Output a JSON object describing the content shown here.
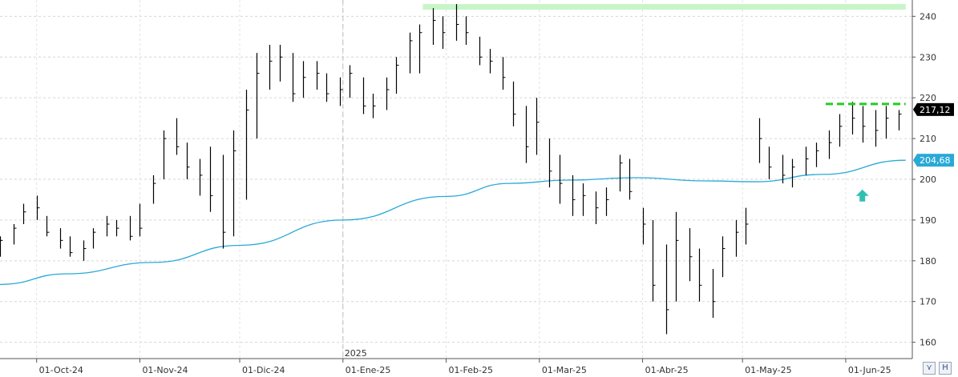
{
  "chart_data": {
    "type": "ohlc",
    "title": "",
    "xlabel": "",
    "ylabel": "",
    "ylim": [
      156,
      244
    ],
    "y_ticks": [
      160,
      170,
      180,
      190,
      200,
      210,
      220,
      230,
      240
    ],
    "x_range": [
      "2024-09-20",
      "2025-06-21"
    ],
    "x_ticks": [
      {
        "date": "2024-10-01",
        "label": "01-Oct-24"
      },
      {
        "date": "2024-11-01",
        "label": "01-Nov-24"
      },
      {
        "date": "2024-12-01",
        "label": "01-Dic-24"
      },
      {
        "date": "2025-01-01",
        "label": "01-Ene-25"
      },
      {
        "date": "2025-02-01",
        "label": "01-Feb-25"
      },
      {
        "date": "2025-03-01",
        "label": "01-Mar-25"
      },
      {
        "date": "2025-04-01",
        "label": "01-Abr-25"
      },
      {
        "date": "2025-05-01",
        "label": "01-May-25"
      },
      {
        "date": "2025-06-01",
        "label": "01-Jun-25"
      }
    ],
    "year_marker": {
      "date": "2025-01-01",
      "label": "2025"
    },
    "grid": true,
    "price_series": {
      "color": "#000000",
      "points": [
        [
          "2024-09-20",
          186,
          181,
          185
        ],
        [
          "2024-09-24",
          189,
          184,
          188
        ],
        [
          "2024-09-27",
          194,
          189,
          192
        ],
        [
          "2024-10-01",
          196,
          190,
          193
        ],
        [
          "2024-10-04",
          191,
          186,
          187
        ],
        [
          "2024-10-08",
          188,
          183,
          185
        ],
        [
          "2024-10-11",
          186,
          181,
          182
        ],
        [
          "2024-10-15",
          185,
          180,
          183
        ],
        [
          "2024-10-18",
          188,
          183,
          187
        ],
        [
          "2024-10-22",
          191,
          186,
          189
        ],
        [
          "2024-10-25",
          190,
          186,
          188
        ],
        [
          "2024-10-29",
          191,
          185,
          186
        ],
        [
          "2024-11-01",
          194,
          186,
          188
        ],
        [
          "2024-11-05",
          201,
          194,
          199
        ],
        [
          "2024-11-08",
          212,
          200,
          210
        ],
        [
          "2024-11-12",
          215,
          206,
          208
        ],
        [
          "2024-11-15",
          209,
          200,
          203
        ],
        [
          "2024-11-19",
          205,
          196,
          201
        ],
        [
          "2024-11-22",
          208,
          192,
          196
        ],
        [
          "2024-11-26",
          206,
          183,
          187
        ],
        [
          "2024-11-29",
          212,
          186,
          207
        ],
        [
          "2024-12-03",
          222,
          195,
          217
        ],
        [
          "2024-12-06",
          231,
          210,
          226
        ],
        [
          "2024-12-10",
          233,
          222,
          229
        ],
        [
          "2024-12-13",
          233,
          224,
          230
        ],
        [
          "2024-12-17",
          231,
          219,
          221
        ],
        [
          "2024-12-20",
          229,
          220,
          225
        ],
        [
          "2024-12-24",
          229,
          222,
          226
        ],
        [
          "2024-12-27",
          226,
          219,
          221
        ],
        [
          "2024-12-31",
          225,
          218,
          222
        ],
        [
          "2025-01-03",
          228,
          220,
          226
        ],
        [
          "2025-01-07",
          225,
          216,
          218
        ],
        [
          "2025-01-10",
          221,
          215,
          218
        ],
        [
          "2025-01-14",
          225,
          217,
          222
        ],
        [
          "2025-01-17",
          230,
          221,
          228
        ],
        [
          "2025-01-21",
          236,
          226,
          234
        ],
        [
          "2025-01-24",
          238,
          226,
          236
        ],
        [
          "2025-01-28",
          242,
          233,
          239
        ],
        [
          "2025-01-31",
          240,
          232,
          236
        ],
        [
          "2025-02-04",
          243,
          234,
          238
        ],
        [
          "2025-02-07",
          240,
          233,
          236
        ],
        [
          "2025-02-11",
          235,
          228,
          230
        ],
        [
          "2025-02-14",
          232,
          226,
          229
        ],
        [
          "2025-02-18",
          230,
          222,
          225
        ],
        [
          "2025-02-21",
          224,
          213,
          216
        ],
        [
          "2025-02-25",
          218,
          204,
          208
        ],
        [
          "2025-02-28",
          220,
          206,
          214
        ],
        [
          "2025-03-04",
          210,
          198,
          202
        ],
        [
          "2025-03-07",
          206,
          194,
          199
        ],
        [
          "2025-03-11",
          201,
          191,
          195
        ],
        [
          "2025-03-14",
          199,
          191,
          196
        ],
        [
          "2025-03-18",
          197,
          189,
          193
        ],
        [
          "2025-03-21",
          198,
          191,
          195
        ],
        [
          "2025-03-25",
          206,
          197,
          204
        ],
        [
          "2025-03-28",
          205,
          195,
          197
        ],
        [
          "2025-04-01",
          193,
          184,
          189
        ],
        [
          "2025-04-04",
          190,
          170,
          174
        ],
        [
          "2025-04-08",
          184,
          162,
          168
        ],
        [
          "2025-04-11",
          192,
          170,
          185
        ],
        [
          "2025-04-15",
          188,
          175,
          181
        ],
        [
          "2025-04-18",
          183,
          170,
          174
        ],
        [
          "2025-04-22",
          178,
          166,
          170
        ],
        [
          "2025-04-25",
          186,
          176,
          183
        ],
        [
          "2025-04-29",
          190,
          181,
          187
        ],
        [
          "2025-05-02",
          193,
          184,
          189
        ],
        [
          "2025-05-06",
          215,
          204,
          210
        ],
        [
          "2025-05-09",
          208,
          200,
          203
        ],
        [
          "2025-05-13",
          206,
          199,
          201
        ],
        [
          "2025-05-16",
          205,
          198,
          203
        ],
        [
          "2025-05-20",
          208,
          201,
          205
        ],
        [
          "2025-05-23",
          209,
          203,
          207
        ],
        [
          "2025-05-27",
          212,
          205,
          209
        ],
        [
          "2025-05-30",
          216,
          208,
          213
        ],
        [
          "2025-06-03",
          219,
          211,
          215
        ],
        [
          "2025-06-06",
          218,
          209,
          213
        ],
        [
          "2025-06-10",
          217,
          208,
          212
        ],
        [
          "2025-06-13",
          218,
          210,
          215
        ],
        [
          "2025-06-17",
          217,
          212,
          216
        ]
      ]
    },
    "moving_average": {
      "color": "#29a9d6",
      "points": [
        [
          "2024-09-20",
          174.2
        ],
        [
          "2024-10-10",
          176.8
        ],
        [
          "2024-11-05",
          179.6
        ],
        [
          "2024-12-01",
          183.8
        ],
        [
          "2025-01-01",
          190.0
        ],
        [
          "2025-02-01",
          195.8
        ],
        [
          "2025-02-20",
          199.0
        ],
        [
          "2025-03-10",
          199.8
        ],
        [
          "2025-03-30",
          200.4
        ],
        [
          "2025-04-20",
          199.6
        ],
        [
          "2025-05-05",
          199.4
        ],
        [
          "2025-05-25",
          201.2
        ],
        [
          "2025-06-19",
          204.68
        ]
      ],
      "last_value_label": "204,68"
    },
    "last_price_label": "217,12",
    "last_price": 217.12,
    "annotations": [
      {
        "kind": "resistance",
        "value": 242.3,
        "from": "2025-01-25",
        "to": "2025-06-19",
        "color": "#c6f5c6",
        "style": "solid"
      },
      {
        "kind": "resistance",
        "value": 218.5,
        "from": "2025-05-26",
        "to": "2025-06-19",
        "color": "#22cc22",
        "style": "dashed"
      },
      {
        "kind": "arrow-up",
        "date": "2025-06-06",
        "value": 197.5,
        "color": "#30c0b0"
      }
    ]
  },
  "toolbar": {
    "zoom_icon": "zoom-icon",
    "save_icon": "save-icon",
    "zoom_glyph": "⋎",
    "save_glyph": "H"
  }
}
